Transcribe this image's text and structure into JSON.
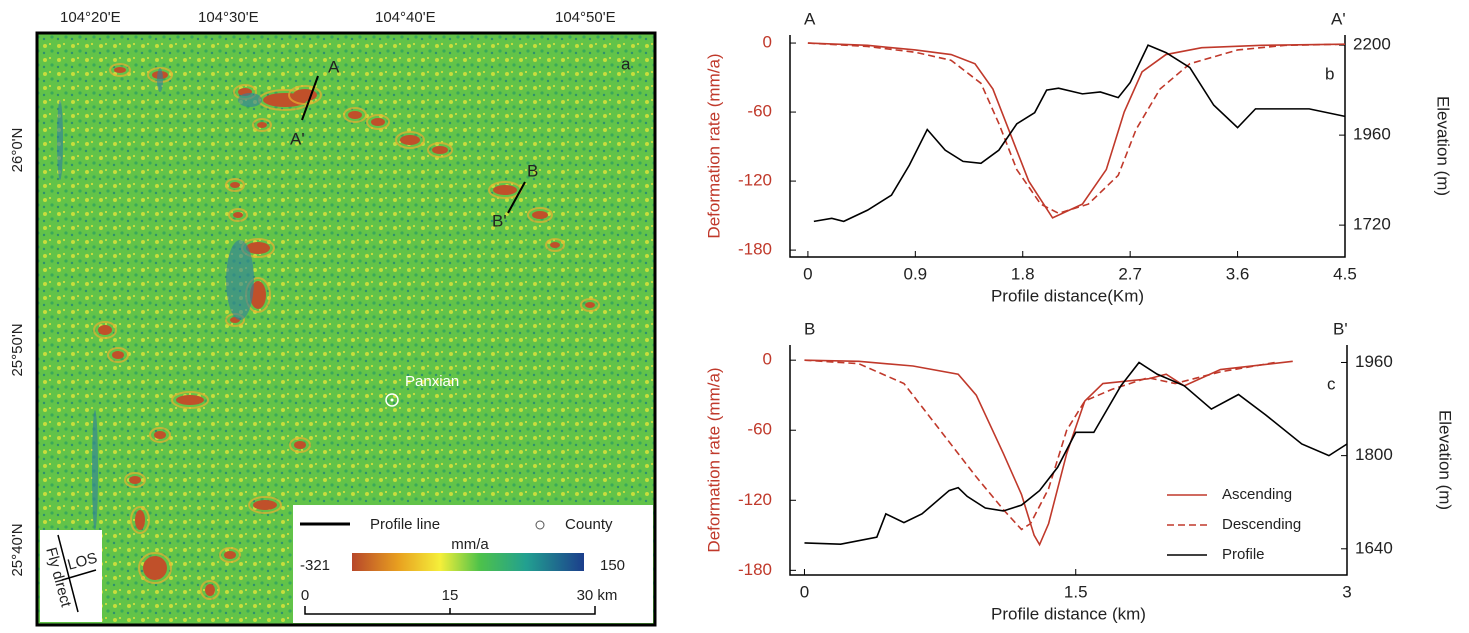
{
  "map": {
    "panel": "a",
    "lon_ticks": [
      "104°20'E",
      "104°30'E",
      "104°40'E",
      "104°50'E"
    ],
    "lat_ticks": [
      "26°0'N",
      "25°50'N",
      "25°40'N"
    ],
    "profiles": [
      "A",
      "A'",
      "B",
      "B'"
    ],
    "county": "Panxian",
    "legend": {
      "profile_line": "Profile line",
      "county": "County",
      "unit": "mm/a",
      "min": "-321",
      "max": "150"
    },
    "scale": [
      "0",
      "15",
      "30 km"
    ],
    "los": "LOS",
    "fly": "Fly direct"
  },
  "chart_data": [
    {
      "type": "line",
      "panel": "b",
      "left_label": "A",
      "right_label": "A'",
      "xlabel": "Profile distance(Km)",
      "ylabel": "Deformation rate (mm/a)",
      "y2label": "Elevation (m)",
      "xlim": [
        -0.15,
        4.5
      ],
      "xticks": [
        0,
        0.9,
        1.8,
        2.7,
        3.6,
        4.5
      ],
      "ylim": [
        -186,
        7
      ],
      "yticks": [
        0,
        -60,
        -120,
        -180
      ],
      "y2lim": [
        1635,
        2227
      ],
      "y2ticks": [
        1720,
        1960,
        2200
      ],
      "series": [
        {
          "color": "#c0392b",
          "dash": false,
          "x": [
            0,
            0.5,
            0.9,
            1.2,
            1.4,
            1.55,
            1.7,
            1.85,
            2.05,
            2.3,
            2.5,
            2.65,
            2.8,
            3.0,
            3.3,
            3.8,
            4.5
          ],
          "values": [
            0,
            -2,
            -6,
            -10,
            -18,
            -40,
            -80,
            -120,
            -152,
            -140,
            -110,
            -60,
            -25,
            -10,
            -4,
            -2,
            -1
          ]
        },
        {
          "color": "#c0392b",
          "dash": true,
          "x": [
            0,
            0.5,
            0.9,
            1.2,
            1.45,
            1.6,
            1.75,
            1.95,
            2.1,
            2.35,
            2.6,
            2.75,
            2.95,
            3.2,
            3.6,
            4.0,
            4.5
          ],
          "values": [
            0,
            -3,
            -8,
            -15,
            -35,
            -70,
            -110,
            -140,
            -148,
            -140,
            -115,
            -75,
            -40,
            -18,
            -6,
            -2,
            -1
          ]
        },
        {
          "color": "#000000",
          "dash": false,
          "axis": "y2",
          "x": [
            0.05,
            0.2,
            0.3,
            0.5,
            0.7,
            0.85,
            1.0,
            1.15,
            1.3,
            1.45,
            1.6,
            1.75,
            1.9,
            2.0,
            2.1,
            2.3,
            2.45,
            2.6,
            2.7,
            2.85,
            3.0,
            3.2,
            3.4,
            3.6,
            3.75,
            4.0,
            4.2,
            4.5
          ],
          "values": [
            1730,
            1738,
            1730,
            1760,
            1800,
            1880,
            1975,
            1920,
            1890,
            1885,
            1920,
            1990,
            2020,
            2080,
            2085,
            2070,
            2075,
            2060,
            2100,
            2200,
            2180,
            2140,
            2040,
            1980,
            2030,
            2030,
            2030,
            2010
          ]
        }
      ]
    },
    {
      "type": "line",
      "panel": "c",
      "left_label": "B",
      "right_label": "B'",
      "xlabel": "Profile distance (km)",
      "ylabel": "Deformation rate (mm/a)",
      "y2label": "Elevation (m)",
      "xlim": [
        -0.08,
        3
      ],
      "xticks": [
        0,
        1.5,
        3
      ],
      "ylim": [
        -184,
        13
      ],
      "yticks": [
        0,
        -60,
        -120,
        -180
      ],
      "y2lim": [
        1595,
        1990
      ],
      "y2ticks": [
        1640,
        1800,
        1960
      ],
      "legend": "lower right",
      "series": [
        {
          "name": "Ascending",
          "color": "#c0392b",
          "dash": false,
          "x": [
            0,
            0.3,
            0.6,
            0.85,
            0.95,
            1.1,
            1.2,
            1.27,
            1.3,
            1.35,
            1.45,
            1.55,
            1.65,
            1.9,
            2.0,
            2.1,
            2.3,
            2.7
          ],
          "values": [
            0,
            -1,
            -5,
            -12,
            -30,
            -80,
            -115,
            -150,
            -158,
            -140,
            -80,
            -35,
            -20,
            -16,
            -12,
            -22,
            -8,
            -1
          ]
        },
        {
          "name": "Descending",
          "color": "#c0392b",
          "dash": true,
          "x": [
            0,
            0.3,
            0.55,
            0.75,
            0.95,
            1.1,
            1.2,
            1.25,
            1.35,
            1.45,
            1.55,
            1.7,
            1.9,
            2.05,
            2.3,
            2.6
          ],
          "values": [
            0,
            -3,
            -20,
            -60,
            -100,
            -128,
            -145,
            -140,
            -110,
            -60,
            -35,
            -25,
            -15,
            -20,
            -10,
            -2
          ]
        },
        {
          "name": "Profile",
          "color": "#000000",
          "dash": false,
          "axis": "y2",
          "x": [
            0,
            0.2,
            0.4,
            0.45,
            0.55,
            0.65,
            0.8,
            0.85,
            0.9,
            1.0,
            1.1,
            1.2,
            1.3,
            1.4,
            1.5,
            1.6,
            1.75,
            1.85,
            1.95,
            2.1,
            2.25,
            2.4,
            2.55,
            2.75,
            2.9,
            3.0
          ],
          "values": [
            1650,
            1648,
            1660,
            1700,
            1685,
            1700,
            1740,
            1745,
            1730,
            1710,
            1705,
            1715,
            1740,
            1780,
            1840,
            1840,
            1920,
            1960,
            1940,
            1920,
            1880,
            1905,
            1870,
            1820,
            1800,
            1820
          ]
        }
      ]
    }
  ]
}
